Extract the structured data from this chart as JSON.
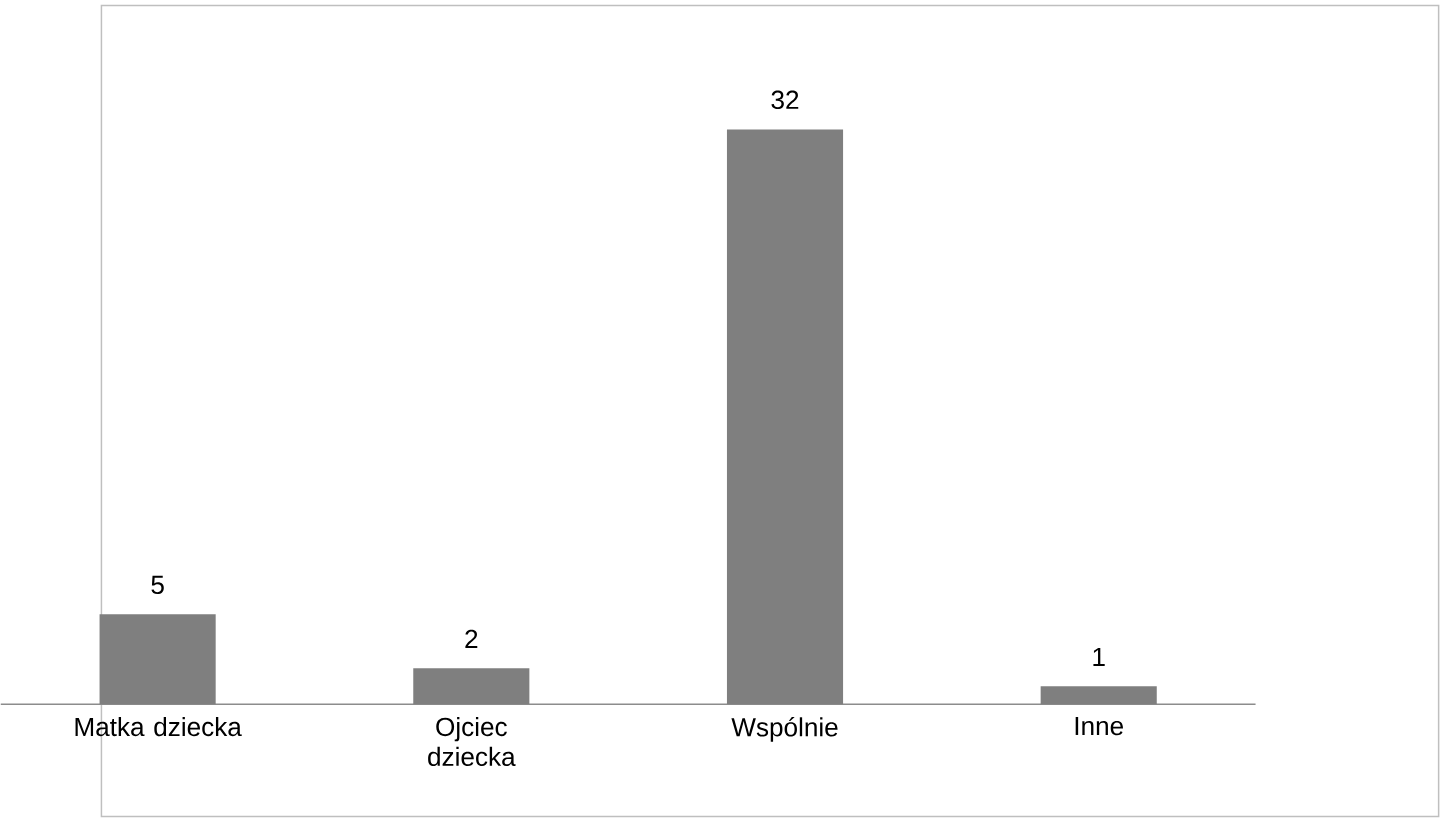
{
  "chart_data": {
    "type": "bar",
    "categories": [
      "Matka dziecka",
      "Ojciec dziecka",
      "Wspólnie",
      "Inne"
    ],
    "values": [
      5,
      2,
      32,
      1
    ],
    "color": "#7f7f7f",
    "data_labels": true
  }
}
